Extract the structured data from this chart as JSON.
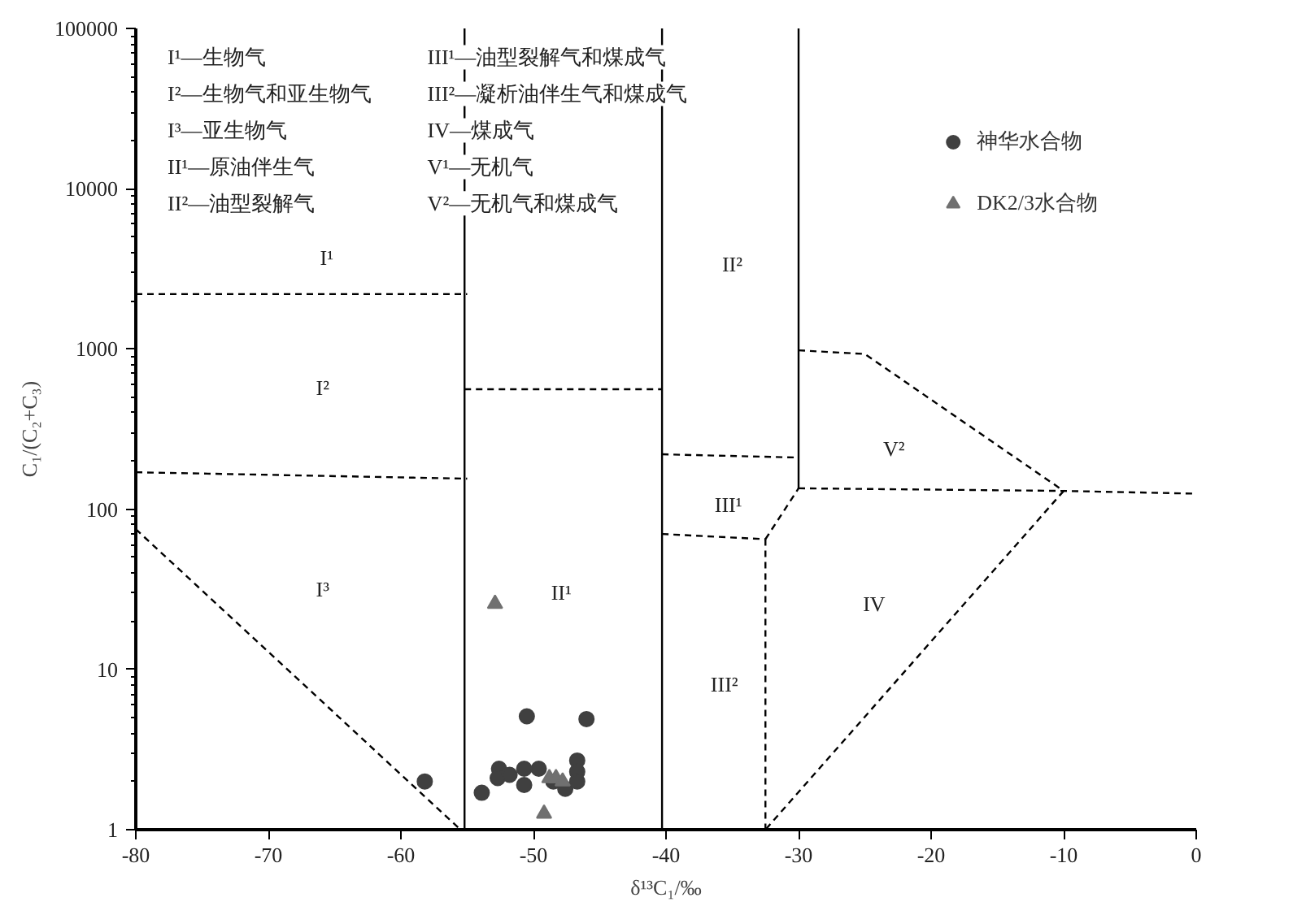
{
  "chart_data": {
    "type": "scatter",
    "xlabel": "δ¹³C₁/‰",
    "ylabel": "C₁/(C₂+C₃)",
    "xlim": [
      -80,
      0
    ],
    "xticks": [
      -80,
      -70,
      -60,
      -50,
      -40,
      -30,
      -20,
      -10,
      0
    ],
    "ylim": [
      1,
      100000
    ],
    "yticks": [
      1,
      10,
      100,
      1000,
      10000,
      100000
    ],
    "log": "y",
    "legend": "top right",
    "series": [
      {
        "name": "神华水合物",
        "color": "#404040",
        "marker": "circle",
        "x": [
          -58.2,
          -53.9,
          -52.6,
          -52.7,
          -51.8,
          -50.5,
          -50.7,
          -50.7,
          -49.6,
          -48.5,
          -47.6,
          -46.7,
          -46.7,
          -46.7,
          -46.0
        ],
        "values": [
          2.0,
          1.7,
          2.4,
          2.1,
          2.2,
          5.1,
          2.4,
          1.9,
          2.4,
          2.0,
          1.8,
          2.7,
          2.3,
          2.0,
          4.9
        ]
      },
      {
        "name": "DK2/3水合物",
        "color": "#707070",
        "marker": "triangle",
        "x": [
          -52.9,
          -49.2,
          -48.8,
          -48.3,
          -47.8
        ],
        "values": [
          25.7,
          1.26,
          2.1,
          2.1,
          2.0
        ]
      },
      {
        "type": "line",
        "color": "#000000",
        "line_style": "dashed",
        "x": [
          -80,
          -55
        ],
        "values": [
          2200,
          2200
        ]
      },
      {
        "type": "line",
        "color": "#000000",
        "line_style": "dashed",
        "x": [
          -80,
          -55
        ],
        "values": [
          170,
          155
        ]
      },
      {
        "type": "line",
        "color": "#000000",
        "line_style": "dashed",
        "x": [
          -80,
          -55.5
        ],
        "values": [
          75,
          1
        ]
      },
      {
        "type": "line",
        "color": "#000000",
        "line_style": "solid",
        "x": [
          -55.2,
          -55.2
        ],
        "values": [
          1,
          100000
        ]
      },
      {
        "type": "line",
        "color": "#000000",
        "line_style": "dashed",
        "x": [
          -55.2,
          -40.3
        ],
        "values": [
          560,
          560
        ]
      },
      {
        "type": "line",
        "color": "#000000",
        "line_style": "solid",
        "x": [
          -40.3,
          -40.3
        ],
        "values": [
          1,
          100000
        ]
      },
      {
        "type": "line",
        "color": "#000000",
        "line_style": "dashed",
        "x": [
          -40.3,
          -30
        ],
        "values": [
          220,
          210
        ]
      },
      {
        "type": "line",
        "color": "#000000",
        "line_style": "dashed",
        "x": [
          -40.3,
          -32.5
        ],
        "values": [
          70,
          65
        ]
      },
      {
        "type": "line",
        "color": "#000000",
        "line_style": "dashed",
        "x": [
          -32.5,
          -32.5
        ],
        "values": [
          65,
          1
        ]
      },
      {
        "type": "line",
        "color": "#000000",
        "line_style": "dashed",
        "x": [
          -32.5,
          -30
        ],
        "values": [
          65,
          135
        ]
      },
      {
        "type": "line",
        "color": "#000000",
        "line_style": "solid",
        "x": [
          -30,
          -30
        ],
        "values": [
          135,
          100000
        ]
      },
      {
        "type": "line",
        "color": "#000000",
        "line_style": "dashed",
        "x": [
          -30,
          -25,
          -10
        ],
        "values": [
          980,
          930,
          130
        ]
      },
      {
        "type": "line",
        "color": "#000000",
        "line_style": "dashed",
        "x": [
          -30,
          -10,
          0
        ],
        "values": [
          135,
          130,
          125
        ]
      },
      {
        "type": "line",
        "color": "#000000",
        "line_style": "dashed",
        "x": [
          -10,
          -32.5
        ],
        "values": [
          130,
          1
        ]
      }
    ],
    "annotations": [
      "I¹—生物气",
      "I²—生物气和亚生物气",
      "I³—亚生物气",
      "II¹—原油伴生气",
      "II²—油型裂解气",
      "III¹—油型裂解气和煤成气",
      "III²—凝析油伴生气和煤成气",
      "IV—煤成气",
      "V¹—无机气",
      "V²—无机气和煤成气",
      "I¹",
      "I²",
      "I³",
      "II¹",
      "II²",
      "III¹",
      "III²",
      "IV",
      "V²"
    ]
  }
}
